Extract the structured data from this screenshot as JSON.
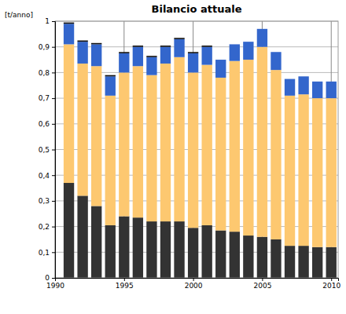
{
  "chart_data": {
    "type": "bar",
    "title": "Bilancio attuale",
    "y_label": "[t/anno]",
    "stacked": true,
    "grid": true,
    "x": [
      1991,
      1992,
      1993,
      1994,
      1995,
      1996,
      1997,
      1998,
      1999,
      2000,
      2001,
      2002,
      2003,
      2004,
      2005,
      2006,
      2007,
      2008,
      2009,
      2010
    ],
    "xlim": [
      1990,
      2010.5
    ],
    "xticks": [
      1990,
      1995,
      2000,
      2005,
      2010
    ],
    "ylim": [
      0,
      1
    ],
    "yticks": [
      0,
      {
        "value": 0.1,
        "label": "0,1"
      },
      {
        "value": 0.2,
        "label": "0,2"
      },
      {
        "value": 0.3,
        "label": "0,3"
      },
      {
        "value": 0.4,
        "label": "0,4"
      },
      {
        "value": 0.5,
        "label": "0,5"
      },
      {
        "value": 0.6,
        "label": "0,6"
      },
      {
        "value": 0.7,
        "label": "0,7"
      },
      {
        "value": 0.8,
        "label": "0,8"
      },
      {
        "value": 0.9,
        "label": "0,9"
      },
      1
    ],
    "series": [
      {
        "color": "#333333",
        "values": [
          0.37,
          0.32,
          0.28,
          0.205,
          0.24,
          0.235,
          0.22,
          0.22,
          0.22,
          0.195,
          0.205,
          0.185,
          0.18,
          0.165,
          0.16,
          0.15,
          0.125,
          0.125,
          0.12,
          0.12
        ]
      },
      {
        "color": "#fdc870",
        "values": [
          0.54,
          0.515,
          0.545,
          0.505,
          0.56,
          0.59,
          0.57,
          0.615,
          0.64,
          0.605,
          0.625,
          0.595,
          0.665,
          0.685,
          0.74,
          0.66,
          0.585,
          0.59,
          0.58,
          0.58
        ]
      },
      {
        "color": "#3366cc",
        "values": [
          0.08,
          0.085,
          0.085,
          0.075,
          0.075,
          0.075,
          0.07,
          0.065,
          0.07,
          0.075,
          0.07,
          0.07,
          0.065,
          0.07,
          0.07,
          0.07,
          0.065,
          0.07,
          0.065,
          0.065
        ]
      },
      {
        "color": "#111111",
        "values": [
          0.005,
          0.005,
          0.005,
          0.005,
          0.005,
          0.005,
          0.005,
          0.005,
          0.005,
          0.005,
          0.005,
          0,
          0,
          0,
          0,
          0,
          0,
          0,
          0,
          0
        ]
      }
    ]
  }
}
